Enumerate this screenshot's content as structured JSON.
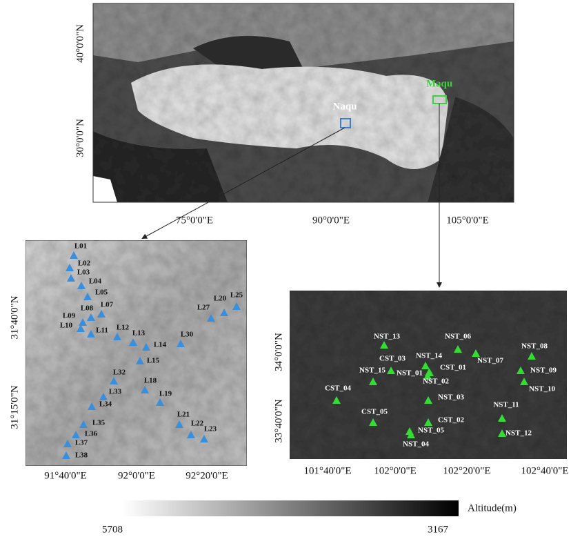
{
  "top_map": {
    "y_labels": [
      "40°0'0\"N",
      "30°0'0\"N"
    ],
    "x_labels": [
      "75°0'0\"E",
      "90°0'0\"E",
      "105°0'0\"E"
    ],
    "regions": [
      "Naqu",
      "Maqu"
    ]
  },
  "naqu_inset": {
    "y_labels": [
      "31°40'0\"N",
      "31°15'0\"N"
    ],
    "x_labels": [
      "91°40'0\"E",
      "92°0'0\"E",
      "92°20'0\"E"
    ],
    "stations": [
      "L01",
      "L02",
      "L03",
      "L04",
      "L05",
      "L07",
      "L08",
      "L09",
      "L10",
      "L11",
      "L12",
      "L13",
      "L14",
      "L15",
      "L18",
      "L19",
      "L20",
      "L25",
      "L27",
      "L30",
      "L32",
      "L33",
      "L34",
      "L35",
      "L36",
      "L37",
      "L38",
      "L21",
      "L22",
      "L23"
    ]
  },
  "maqu_inset": {
    "y_labels": [
      "34°0'0\"N",
      "33°40'0\"N"
    ],
    "x_labels": [
      "101°40'0\"E",
      "102°0'0\"E",
      "102°20'0\"E",
      "102°40'0\"E"
    ],
    "stations": [
      "NST_13",
      "CST_03",
      "NST_14",
      "CST_01",
      "NST_15",
      "NST_01",
      "NST_02",
      "NST_06",
      "NST_07",
      "NST_08",
      "NST_09",
      "NST_10",
      "CST_04",
      "NST_03",
      "NST_11",
      "CST_05",
      "CST_02",
      "NST_05",
      "NST_04",
      "NST_12"
    ]
  },
  "colorbar": {
    "title": "Altitude(m)",
    "labels": [
      5708,
      3167
    ]
  }
}
